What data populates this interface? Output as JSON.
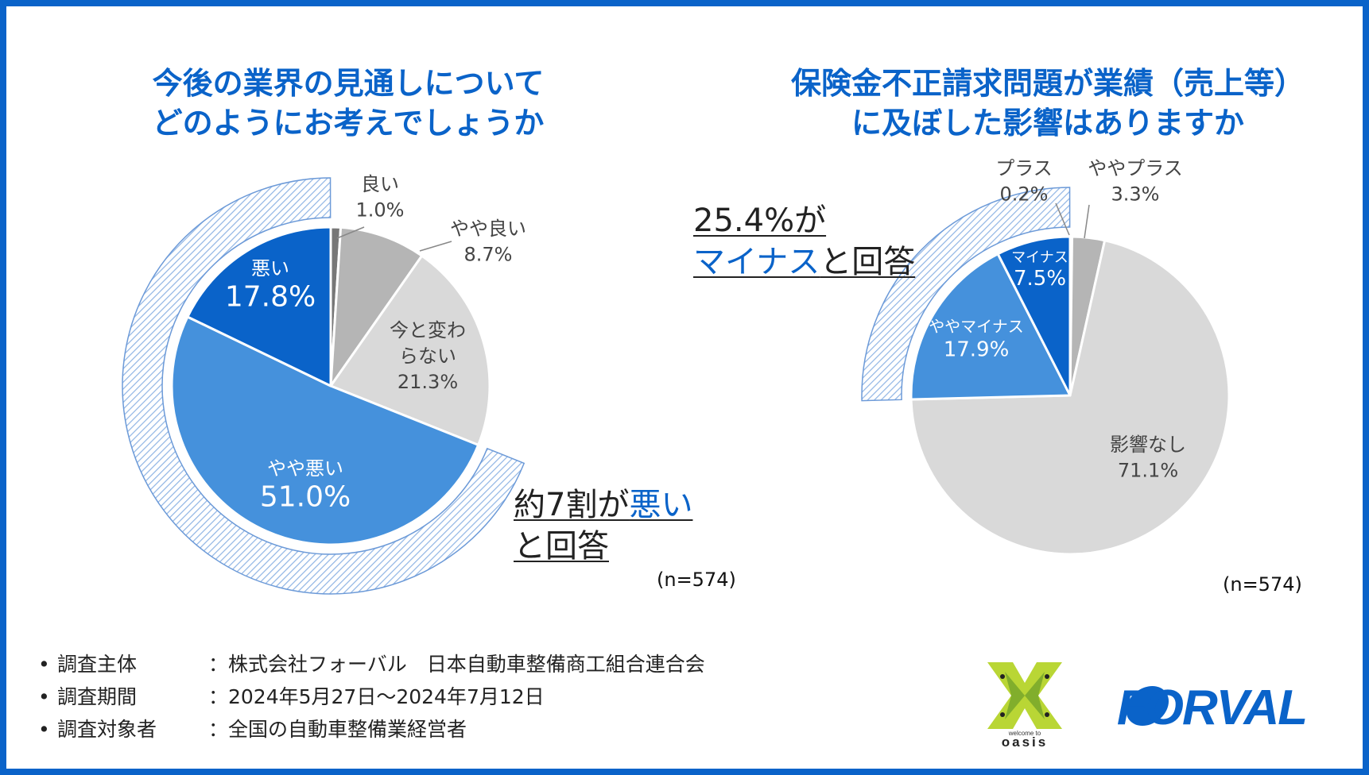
{
  "left": {
    "title_line1": "今後の業界の見通しについて",
    "title_line2": "どのようにお考えでしょうか",
    "callout_prefix": "約7割が",
    "callout_highlight": "悪い",
    "callout_line2": "と回答",
    "sample_size": "(n=574)"
  },
  "right": {
    "title_line1": "保険金不正請求問題が業績（売上等）",
    "title_line2": "に及ぼした影響はありますか",
    "callout_line1": "25.4%が",
    "callout_highlight": "マイナス",
    "callout_suffix": "と回答",
    "sample_size": "(n=574)"
  },
  "chart_data": [
    {
      "type": "pie",
      "title": "今後の業界の見通しについて どのようにお考えでしょうか",
      "slices": [
        {
          "label": "良い",
          "value": 1.0,
          "value_label": "1.0%",
          "color": "#777777"
        },
        {
          "label": "やや良い",
          "value": 8.7,
          "value_label": "8.7%",
          "color": "#b5b5b5"
        },
        {
          "label_lines": [
            "今と変わ",
            "らない"
          ],
          "label": "今と変わらない",
          "value": 21.3,
          "value_label": "21.3%",
          "color": "#d9d9d9"
        },
        {
          "label": "やや悪い",
          "value": 51.0,
          "value_label": "51.0%",
          "color": "#4591dc"
        },
        {
          "label": "悪い",
          "value": 17.8,
          "value_label": "17.8%",
          "color": "#0a63c9"
        }
      ],
      "highlight_value": 68.8
    },
    {
      "type": "pie",
      "title": "保険金不正請求問題が業績（売上等）に及ぼした影響はありますか",
      "slices": [
        {
          "label": "プラス",
          "value": 0.2,
          "value_label": "0.2%",
          "color": "#777777"
        },
        {
          "label": "ややプラス",
          "value": 3.3,
          "value_label": "3.3%",
          "color": "#b5b5b5"
        },
        {
          "label": "影響なし",
          "value": 71.1,
          "value_label": "71.1%",
          "color": "#d9d9d9"
        },
        {
          "label": "ややマイナス",
          "value": 17.9,
          "value_label": "17.9%",
          "color": "#4591dc"
        },
        {
          "label": "マイナス",
          "value": 7.5,
          "value_label": "7.5%",
          "color": "#0a63c9"
        }
      ],
      "highlight_value": 25.4
    }
  ],
  "survey_info": [
    {
      "bullet": "•",
      "label": "調査主体",
      "value": "：株式会社フォーバル　日本自動車整備商工組合連合会"
    },
    {
      "bullet": "•",
      "label": "調査期間",
      "value": "：2024年5月27日～2024年7月12日"
    },
    {
      "bullet": "•",
      "label": "調査対象者",
      "value": "：全国の自動車整備業経営者"
    }
  ],
  "logos": {
    "oasis_small": "welcome to",
    "oasis_name": "oasis",
    "forval": "FORVAL"
  },
  "colors": {
    "accent": "#0a63c9",
    "border": "#0a63c9"
  }
}
